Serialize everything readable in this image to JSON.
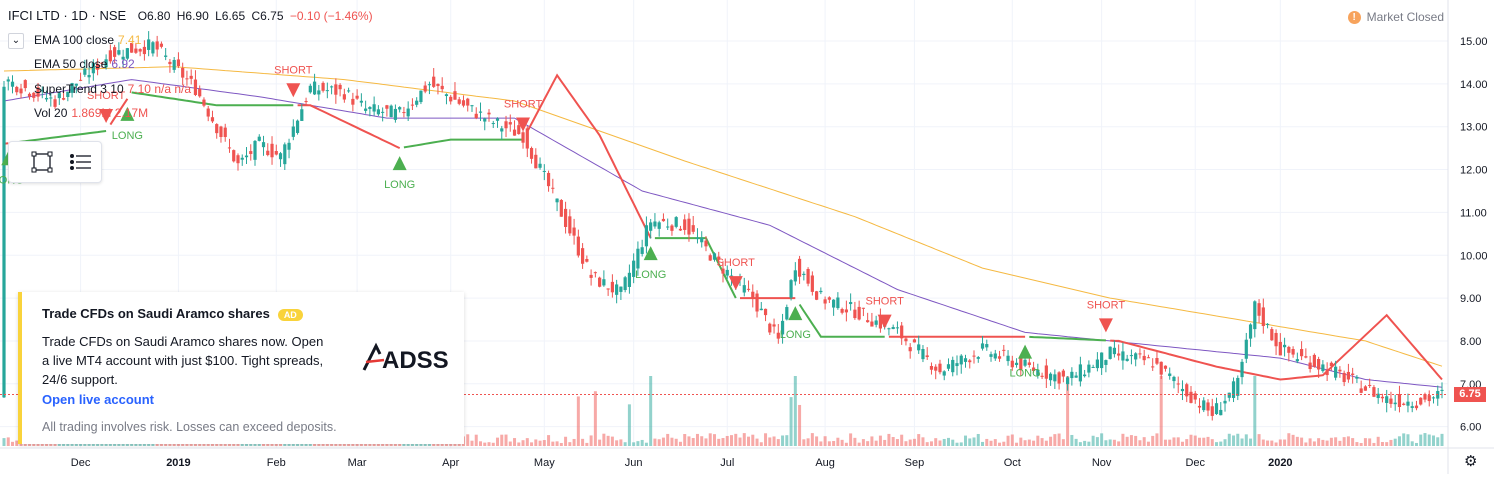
{
  "header": {
    "symbol": "IFCI LTD · 1D · NSE",
    "open": "O6.80",
    "high": "H6.90",
    "low": "L6.65",
    "close": "C6.75",
    "change": "−0.10 (−1.46%)",
    "change_color": "#ef5350"
  },
  "indicators": [
    {
      "name": "EMA 100 close",
      "value": "7.41",
      "color": "#f5b942"
    },
    {
      "name": "EMA 50 close",
      "value": "6.92",
      "color": "#7e57c2"
    },
    {
      "name": "SuperTrend 3 10",
      "value": "7.10  n/a  n/a",
      "color": "#ef5350"
    },
    {
      "name": "Vol 20",
      "value": "1.869M  2.17M",
      "color": "#ef5350"
    }
  ],
  "market_status": {
    "label": "Market Closed",
    "icon": "!"
  },
  "price_axis": {
    "ticks": [
      "15.00",
      "14.00",
      "13.00",
      "12.00",
      "11.00",
      "10.00",
      "9.00",
      "8.00",
      "7.00",
      "6.00"
    ],
    "current": "6.75"
  },
  "time_axis": {
    "ticks": [
      "Dec",
      "2019",
      "Feb",
      "Mar",
      "Apr",
      "May",
      "Jun",
      "Jul",
      "Aug",
      "Sep",
      "Oct",
      "Nov",
      "Dec",
      "2020"
    ]
  },
  "ad": {
    "title": "Trade CFDs on Saudi Aramco shares",
    "badge": "AD",
    "body": "Trade CFDs on Saudi Aramco shares now. Open a live MT4 account with just $100. Tight spreads, 24/6 support.",
    "cta": "Open live account",
    "disclaimer": "All trading involves risk. Losses can exceed deposits.",
    "logo_text": "ADSS"
  },
  "signals": [
    {
      "label": "LONG",
      "t": 1
    },
    {
      "label": "SHORT",
      "t": 24
    },
    {
      "label": "LONG",
      "t": 29
    },
    {
      "label": "SHORT",
      "t": 68
    },
    {
      "label": "LONG",
      "t": 93
    },
    {
      "label": "SHORT",
      "t": 122
    },
    {
      "label": "LONG",
      "t": 152
    },
    {
      "label": "SHORT",
      "t": 172
    },
    {
      "label": "LONG",
      "t": 186
    },
    {
      "label": "SHORT",
      "t": 207
    },
    {
      "label": "LONG",
      "t": 240
    },
    {
      "label": "SHORT",
      "t": 259
    }
  ],
  "colors": {
    "up": "#26a69a",
    "down": "#ef5350",
    "ema100": "#f5b942",
    "ema50": "#7e57c2",
    "st_up": "#4caf50",
    "st_down": "#ef5350"
  },
  "chart_data": {
    "type": "candlestick",
    "title": "IFCI LTD · 1D · NSE",
    "ylim": [
      5.8,
      15.3
    ],
    "x_ticks": [
      "Dec",
      "2019",
      "Feb",
      "Mar",
      "Apr",
      "May",
      "Jun",
      "Jul",
      "Aug",
      "Sep",
      "Oct",
      "Nov",
      "Dec",
      "2020"
    ],
    "close_keypoints": [
      [
        0,
        14.1
      ],
      [
        12,
        13.6
      ],
      [
        25,
        14.7
      ],
      [
        35,
        14.9
      ],
      [
        45,
        13.9
      ],
      [
        55,
        12.1
      ],
      [
        60,
        12.6
      ],
      [
        65,
        12.3
      ],
      [
        72,
        13.9
      ],
      [
        80,
        13.8
      ],
      [
        85,
        13.4
      ],
      [
        93,
        13.3
      ],
      [
        100,
        14.0
      ],
      [
        108,
        13.5
      ],
      [
        115,
        13.1
      ],
      [
        122,
        12.8
      ],
      [
        130,
        11.2
      ],
      [
        138,
        9.5
      ],
      [
        145,
        9.1
      ],
      [
        152,
        10.8
      ],
      [
        160,
        10.7
      ],
      [
        168,
        9.8
      ],
      [
        176,
        9.0
      ],
      [
        182,
        8.0
      ],
      [
        186,
        9.8
      ],
      [
        192,
        9.0
      ],
      [
        200,
        8.7
      ],
      [
        210,
        8.2
      ],
      [
        220,
        7.3
      ],
      [
        230,
        7.8
      ],
      [
        240,
        7.4
      ],
      [
        250,
        7.1
      ],
      [
        260,
        7.7
      ],
      [
        270,
        7.5
      ],
      [
        278,
        6.8
      ],
      [
        284,
        6.3
      ],
      [
        290,
        7.0
      ],
      [
        294,
        8.8
      ],
      [
        300,
        7.8
      ],
      [
        310,
        7.4
      ],
      [
        318,
        7.0
      ],
      [
        326,
        6.6
      ],
      [
        333,
        6.6
      ],
      [
        338,
        6.75
      ]
    ],
    "ema100_keypoints": [
      [
        0,
        14.3
      ],
      [
        40,
        14.4
      ],
      [
        80,
        14.1
      ],
      [
        120,
        13.6
      ],
      [
        160,
        12.2
      ],
      [
        200,
        10.9
      ],
      [
        230,
        9.7
      ],
      [
        260,
        9.0
      ],
      [
        290,
        8.5
      ],
      [
        320,
        8.0
      ],
      [
        338,
        7.41
      ]
    ],
    "ema50_keypoints": [
      [
        0,
        13.6
      ],
      [
        30,
        14.1
      ],
      [
        60,
        13.7
      ],
      [
        90,
        13.2
      ],
      [
        120,
        13.2
      ],
      [
        150,
        11.5
      ],
      [
        180,
        10.7
      ],
      [
        210,
        9.2
      ],
      [
        240,
        8.2
      ],
      [
        270,
        7.9
      ],
      [
        300,
        7.6
      ],
      [
        320,
        7.1
      ],
      [
        338,
        6.92
      ]
    ],
    "supertrend_keypoints": [
      [
        0,
        12.6
      ],
      [
        24,
        12.9
      ],
      [
        30,
        13.8
      ],
      [
        50,
        13.5
      ],
      [
        72,
        13.5
      ],
      [
        93,
        12.5
      ],
      [
        105,
        12.7
      ],
      [
        122,
        12.7
      ],
      [
        130,
        14.2
      ],
      [
        140,
        12.8
      ],
      [
        152,
        10.4
      ],
      [
        165,
        10.4
      ],
      [
        172,
        9.0
      ],
      [
        186,
        9.0
      ],
      [
        192,
        8.1
      ],
      [
        215,
        8.1
      ],
      [
        240,
        8.1
      ],
      [
        262,
        8.0
      ],
      [
        285,
        7.4
      ],
      [
        300,
        7.1
      ],
      [
        310,
        7.2
      ],
      [
        325,
        8.6
      ],
      [
        338,
        7.1
      ]
    ],
    "volume_avg_label": "1.869M",
    "current_price": 6.75
  }
}
